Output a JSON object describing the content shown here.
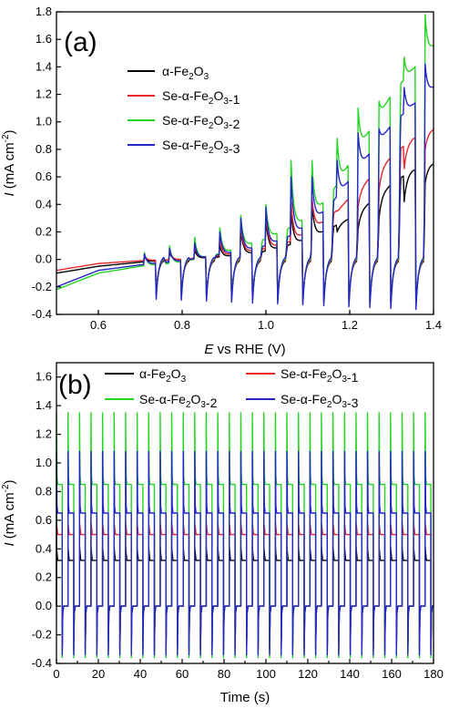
{
  "chart_data": [
    {
      "type": "line",
      "panel_label": "(a)",
      "xlabel_italic": "E",
      "xlabel_rest": " vs RHE (V)",
      "ylabel_italic": "I",
      "ylabel_rest": " (mA cm",
      "ylabel_sup": "-2",
      "ylabel_end": ")",
      "xlim": [
        0.5,
        1.4
      ],
      "ylim": [
        -0.4,
        1.8
      ],
      "xticks": [
        "0.6",
        "0.8",
        "1.0",
        "1.2",
        "1.4"
      ],
      "yticks": [
        "-0.4",
        "-0.2",
        "0.0",
        "0.2",
        "0.4",
        "0.6",
        "0.8",
        "1.0",
        "1.2",
        "1.4",
        "1.6",
        "1.8"
      ],
      "legend_position": "upper-left, stacked",
      "chopped_light_on_edges_V": [
        0.71,
        0.77,
        0.83,
        0.89,
        0.94,
        1.0,
        1.06,
        1.11,
        1.17,
        1.22,
        1.27,
        1.33,
        1.38
      ],
      "series": [
        {
          "name": "α-Fe2O3",
          "color": "#000000",
          "x": [
            0.5,
            0.6,
            0.7,
            0.8,
            0.9,
            1.0,
            1.05,
            1.1,
            1.15,
            1.2,
            1.25,
            1.3,
            1.35,
            1.4
          ],
          "y": [
            -0.1,
            -0.05,
            -0.02,
            0.0,
            0.02,
            0.06,
            0.1,
            0.15,
            0.22,
            0.3,
            0.42,
            0.55,
            0.65,
            0.7
          ],
          "peaks": [
            0.02,
            0.05,
            0.07,
            0.1,
            0.22,
            0.3,
            0.35,
            0.4,
            0.2,
            0.22,
            0.3,
            0.42,
            0.55
          ]
        },
        {
          "name": "Se-α-Fe2O3-1",
          "color": "#e8262a",
          "x": [
            0.5,
            0.6,
            0.7,
            0.8,
            0.9,
            1.0,
            1.05,
            1.1,
            1.15,
            1.2,
            1.25,
            1.3,
            1.35,
            1.4
          ],
          "y": [
            -0.08,
            -0.03,
            -0.01,
            0.0,
            0.03,
            0.08,
            0.12,
            0.2,
            0.3,
            0.45,
            0.6,
            0.75,
            0.88,
            0.95
          ],
          "peaks": [
            0.03,
            0.06,
            0.1,
            0.15,
            0.25,
            0.35,
            0.42,
            0.45,
            0.35,
            0.38,
            0.5,
            0.66,
            0.8
          ]
        },
        {
          "name": "Se-α-Fe2O3-2",
          "color": "#22d622",
          "x": [
            0.5,
            0.6,
            0.7,
            0.8,
            0.9,
            1.0,
            1.05,
            1.1,
            1.15,
            1.2,
            1.25,
            1.3,
            1.35,
            1.4
          ],
          "y": [
            -0.22,
            -0.1,
            -0.05,
            -0.02,
            0.05,
            0.15,
            0.22,
            0.3,
            0.45,
            0.7,
            0.95,
            1.2,
            1.38,
            1.55
          ],
          "peaks": [
            0.05,
            0.1,
            0.16,
            0.23,
            0.32,
            0.4,
            0.72,
            0.72,
            0.88,
            1.1,
            1.15,
            1.47,
            1.78
          ]
        },
        {
          "name": "Se-α-Fe2O3-3",
          "color": "#2525c8",
          "x": [
            0.5,
            0.6,
            0.7,
            0.8,
            0.9,
            1.0,
            1.05,
            1.1,
            1.15,
            1.2,
            1.25,
            1.3,
            1.35,
            1.4
          ],
          "y": [
            -0.2,
            -0.08,
            -0.04,
            -0.01,
            0.04,
            0.1,
            0.16,
            0.25,
            0.38,
            0.58,
            0.78,
            0.98,
            1.12,
            1.25
          ],
          "peaks": [
            0.04,
            0.08,
            0.12,
            0.2,
            0.3,
            0.38,
            0.6,
            0.6,
            0.72,
            0.92,
            0.95,
            1.25,
            1.42
          ]
        }
      ]
    },
    {
      "type": "line",
      "panel_label": "(b)",
      "xlabel_italic": "",
      "xlabel_rest": "Time (s)",
      "ylabel_italic": "I",
      "ylabel_rest": " (mA cm",
      "ylabel_sup": "-2",
      "ylabel_end": ")",
      "xlim": [
        0,
        180
      ],
      "ylim": [
        -0.4,
        1.7
      ],
      "xticks": [
        "0",
        "20",
        "40",
        "60",
        "80",
        "100",
        "120",
        "140",
        "160",
        "180"
      ],
      "yticks": [
        "-0.4",
        "-0.2",
        "0.0",
        "0.2",
        "0.4",
        "0.6",
        "0.8",
        "1.0",
        "1.2",
        "1.4",
        "1.6"
      ],
      "legend_position": "top, two columns",
      "light_on_times_s": [
        0,
        5.5,
        11,
        16.5,
        22,
        27.5,
        33,
        38.5,
        44,
        49.5,
        55,
        60.5,
        66,
        71.5,
        77,
        82.5,
        88,
        93.5,
        99,
        104.5,
        110,
        115.5,
        121,
        126.5,
        132,
        137.5,
        143,
        148.5,
        154,
        159.5,
        165,
        170.5,
        176
      ],
      "series": [
        {
          "name": "α-Fe2O3",
          "color": "#000000",
          "plateau": 0.32,
          "spike": 0.42,
          "dip": -0.29
        },
        {
          "name": "Se-α-Fe2O3-1",
          "color": "#e8262a",
          "plateau": 0.5,
          "spike": 0.58,
          "dip": -0.32
        },
        {
          "name": "Se-α-Fe2O3-2",
          "color": "#22d622",
          "plateau": 0.85,
          "spike": 1.35,
          "dip": -0.36
        },
        {
          "name": "Se-α-Fe2O3-3",
          "color": "#2525c8",
          "plateau": 0.65,
          "spike": 1.08,
          "dip": -0.34
        }
      ]
    }
  ]
}
